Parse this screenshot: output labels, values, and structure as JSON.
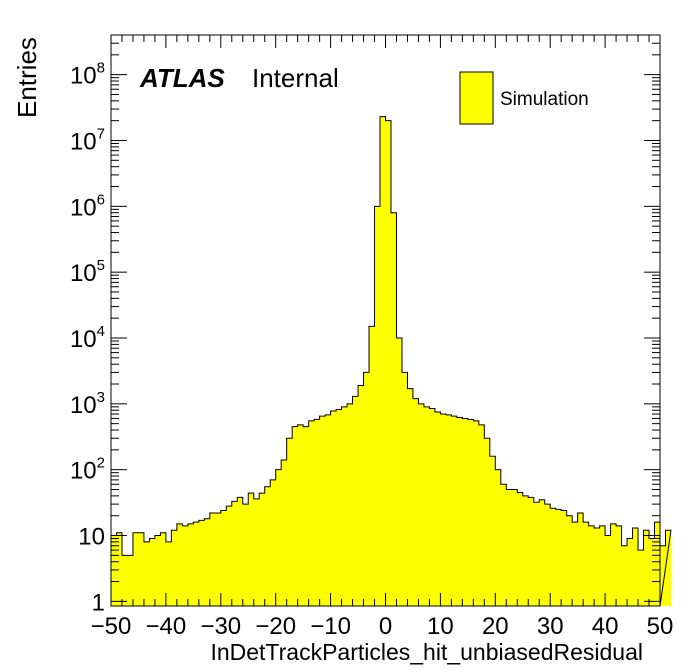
{
  "chart_data": {
    "type": "bar",
    "style": "histogram",
    "xlabel": "InDetTrackParticles_hit_unbiasedResidual",
    "ylabel": "Entries",
    "xlim": [
      -50,
      50
    ],
    "ylim": [
      0.85,
      400000000
    ],
    "yscale": "log",
    "bin_width": 1,
    "x_ticks": [
      "−50",
      "−40",
      "−30",
      "−20",
      "−10",
      "0",
      "10",
      "20",
      "30",
      "40",
      "50"
    ],
    "y_ticks": [
      {
        "value": 1,
        "label": "1",
        "exp": ""
      },
      {
        "value": 10,
        "label": "10",
        "exp": ""
      },
      {
        "value": 100,
        "label": "10",
        "exp": "2"
      },
      {
        "value": 1000,
        "label": "10",
        "exp": "3"
      },
      {
        "value": 10000,
        "label": "10",
        "exp": "4"
      },
      {
        "value": 100000,
        "label": "10",
        "exp": "5"
      },
      {
        "value": 1000000,
        "label": "10",
        "exp": "6"
      },
      {
        "value": 10000000,
        "label": "10",
        "exp": "7"
      },
      {
        "value": 100000000,
        "label": "10",
        "exp": "8"
      }
    ],
    "annotation": {
      "brand": "ATLAS",
      "label": "Internal"
    },
    "series": [
      {
        "name": "Simulation",
        "color": "#ffff00",
        "edge_color": "#000000",
        "values": [
          10,
          11,
          5,
          5,
          11,
          11,
          8,
          9,
          10,
          11,
          8,
          12,
          15,
          14,
          15,
          16,
          17,
          18,
          22,
          22,
          24,
          28,
          33,
          38,
          30,
          44,
          36,
          44,
          55,
          70,
          100,
          140,
          300,
          450,
          480,
          450,
          550,
          580,
          650,
          680,
          780,
          820,
          900,
          1000,
          1300,
          1900,
          3000,
          15000,
          1000000,
          23000000,
          20000000,
          800000,
          10000,
          3000,
          1700,
          1200,
          1000,
          900,
          850,
          750,
          700,
          680,
          650,
          620,
          600,
          580,
          550,
          480,
          300,
          160,
          100,
          60,
          50,
          50,
          45,
          40,
          38,
          32,
          35,
          30,
          26,
          25,
          24,
          20,
          16,
          22,
          16,
          14,
          13,
          14,
          10,
          15,
          14,
          7,
          9,
          13,
          6,
          12,
          9,
          16,
          7,
          12
        ]
      }
    ],
    "grid": false,
    "legend_position": "top-right"
  }
}
